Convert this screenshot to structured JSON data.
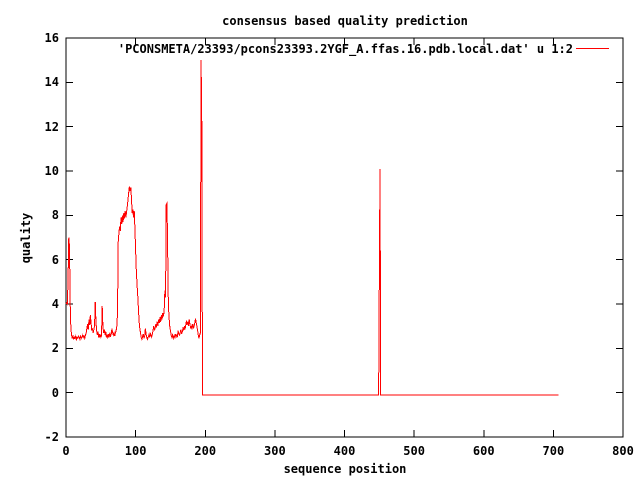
{
  "page": {
    "background": "#ffffff",
    "axis_color": "#000000",
    "text_color": "#000000"
  },
  "chart_data": {
    "type": "line",
    "title": "consensus based quality prediction",
    "xlabel": "sequence position",
    "ylabel": "quality",
    "xlim": [
      0,
      800
    ],
    "ylim": [
      -2,
      16
    ],
    "x_ticks": [
      0,
      100,
      200,
      300,
      400,
      500,
      600,
      700,
      800
    ],
    "y_ticks": [
      -2,
      0,
      2,
      4,
      6,
      8,
      10,
      12,
      14,
      16
    ],
    "grid": false,
    "legend_position": "top-right-inside",
    "series": [
      {
        "name": "'PCONSMETA/23393/pcons23393.2YGF_A.ffas.16.pdb.local.dat' u 1:2",
        "color": "#ff0000",
        "points": [
          [
            0,
            4.0
          ],
          [
            1,
            4.05
          ],
          [
            2,
            4.0
          ],
          [
            3,
            5.2
          ],
          [
            4,
            7.0
          ],
          [
            5,
            6.6
          ],
          [
            6,
            4.0
          ],
          [
            7,
            2.9
          ],
          [
            8,
            2.6
          ],
          [
            9,
            2.45
          ],
          [
            10,
            2.6
          ],
          [
            11,
            2.4
          ],
          [
            12,
            2.5
          ],
          [
            13,
            2.45
          ],
          [
            14,
            2.55
          ],
          [
            15,
            2.4
          ],
          [
            16,
            2.5
          ],
          [
            17,
            2.45
          ],
          [
            18,
            2.55
          ],
          [
            19,
            2.5
          ],
          [
            20,
            2.4
          ],
          [
            21,
            2.55
          ],
          [
            22,
            2.45
          ],
          [
            23,
            2.5
          ],
          [
            24,
            2.6
          ],
          [
            25,
            2.5
          ],
          [
            26,
            2.55
          ],
          [
            27,
            2.45
          ],
          [
            28,
            2.6
          ],
          [
            29,
            2.7
          ],
          [
            30,
            2.9
          ],
          [
            31,
            3.1
          ],
          [
            32,
            2.85
          ],
          [
            33,
            3.3
          ],
          [
            34,
            3.05
          ],
          [
            35,
            3.5
          ],
          [
            36,
            3.15
          ],
          [
            37,
            2.8
          ],
          [
            38,
            2.9
          ],
          [
            39,
            2.7
          ],
          [
            40,
            2.85
          ],
          [
            41,
            3.0
          ],
          [
            42,
            4.1
          ],
          [
            43,
            3.2
          ],
          [
            44,
            2.8
          ],
          [
            45,
            2.6
          ],
          [
            46,
            2.75
          ],
          [
            47,
            2.5
          ],
          [
            48,
            2.65
          ],
          [
            49,
            2.5
          ],
          [
            50,
            2.6
          ],
          [
            51,
            2.55
          ],
          [
            52,
            3.9
          ],
          [
            53,
            3.0
          ],
          [
            54,
            2.7
          ],
          [
            55,
            2.85
          ],
          [
            56,
            2.6
          ],
          [
            57,
            2.75
          ],
          [
            58,
            2.5
          ],
          [
            59,
            2.6
          ],
          [
            60,
            2.5
          ],
          [
            61,
            2.65
          ],
          [
            62,
            2.5
          ],
          [
            63,
            2.7
          ],
          [
            64,
            2.55
          ],
          [
            65,
            2.65
          ],
          [
            66,
            2.9
          ],
          [
            67,
            2.7
          ],
          [
            68,
            2.6
          ],
          [
            69,
            2.7
          ],
          [
            70,
            2.55
          ],
          [
            71,
            2.7
          ],
          [
            72,
            2.8
          ],
          [
            73,
            3.0
          ],
          [
            74,
            3.6
          ],
          [
            75,
            6.8
          ],
          [
            76,
            7.2
          ],
          [
            77,
            7.5
          ],
          [
            78,
            7.3
          ],
          [
            79,
            7.9
          ],
          [
            80,
            7.6
          ],
          [
            81,
            8.0
          ],
          [
            82,
            7.7
          ],
          [
            83,
            8.1
          ],
          [
            84,
            7.85
          ],
          [
            85,
            8.2
          ],
          [
            86,
            7.9
          ],
          [
            87,
            8.15
          ],
          [
            88,
            8.4
          ],
          [
            89,
            8.7
          ],
          [
            90,
            9.0
          ],
          [
            91,
            9.3
          ],
          [
            92,
            9.1
          ],
          [
            93,
            9.25
          ],
          [
            94,
            8.8
          ],
          [
            95,
            8.1
          ],
          [
            96,
            8.25
          ],
          [
            97,
            7.9
          ],
          [
            98,
            8.2
          ],
          [
            99,
            7.4
          ],
          [
            100,
            6.4
          ],
          [
            101,
            5.5
          ],
          [
            102,
            4.9
          ],
          [
            103,
            4.4
          ],
          [
            104,
            3.8
          ],
          [
            105,
            3.2
          ],
          [
            106,
            2.9
          ],
          [
            107,
            2.7
          ],
          [
            108,
            2.5
          ],
          [
            109,
            2.4
          ],
          [
            110,
            2.55
          ],
          [
            111,
            2.65
          ],
          [
            112,
            2.45
          ],
          [
            113,
            2.55
          ],
          [
            114,
            2.9
          ],
          [
            115,
            2.65
          ],
          [
            116,
            2.5
          ],
          [
            117,
            2.4
          ],
          [
            118,
            2.5
          ],
          [
            119,
            2.6
          ],
          [
            120,
            2.5
          ],
          [
            121,
            2.7
          ],
          [
            122,
            2.55
          ],
          [
            123,
            2.5
          ],
          [
            124,
            2.65
          ],
          [
            125,
            2.8
          ],
          [
            126,
            3.0
          ],
          [
            127,
            2.8
          ],
          [
            128,
            2.9
          ],
          [
            129,
            3.1
          ],
          [
            130,
            2.95
          ],
          [
            131,
            3.2
          ],
          [
            132,
            3.0
          ],
          [
            133,
            3.3
          ],
          [
            134,
            3.15
          ],
          [
            135,
            3.4
          ],
          [
            136,
            3.2
          ],
          [
            137,
            3.5
          ],
          [
            138,
            3.3
          ],
          [
            139,
            3.6
          ],
          [
            140,
            3.45
          ],
          [
            141,
            3.7
          ],
          [
            142,
            4.6
          ],
          [
            143,
            4.3
          ],
          [
            144,
            8.5
          ],
          [
            145,
            8.55
          ],
          [
            146,
            6.5
          ],
          [
            147,
            4.0
          ],
          [
            148,
            3.4
          ],
          [
            149,
            3.0
          ],
          [
            150,
            2.8
          ],
          [
            151,
            2.6
          ],
          [
            152,
            2.5
          ],
          [
            153,
            2.6
          ],
          [
            154,
            2.45
          ],
          [
            155,
            2.55
          ],
          [
            156,
            2.5
          ],
          [
            157,
            2.65
          ],
          [
            158,
            2.5
          ],
          [
            159,
            2.6
          ],
          [
            160,
            2.55
          ],
          [
            161,
            2.8
          ],
          [
            162,
            2.65
          ],
          [
            163,
            2.6
          ],
          [
            164,
            2.7
          ],
          [
            165,
            2.85
          ],
          [
            166,
            2.65
          ],
          [
            167,
            2.75
          ],
          [
            168,
            2.9
          ],
          [
            169,
            2.8
          ],
          [
            170,
            3.0
          ],
          [
            171,
            2.85
          ],
          [
            172,
            3.05
          ],
          [
            173,
            3.25
          ],
          [
            174,
            3.05
          ],
          [
            175,
            3.2
          ],
          [
            176,
            3.0
          ],
          [
            177,
            3.3
          ],
          [
            178,
            3.1
          ],
          [
            179,
            2.9
          ],
          [
            180,
            3.0
          ],
          [
            181,
            2.85
          ],
          [
            182,
            3.1
          ],
          [
            183,
            2.9
          ],
          [
            184,
            3.0
          ],
          [
            185,
            3.15
          ],
          [
            186,
            3.35
          ],
          [
            187,
            3.15
          ],
          [
            188,
            3.0
          ],
          [
            189,
            2.8
          ],
          [
            190,
            2.6
          ],
          [
            191,
            2.45
          ],
          [
            192,
            2.6
          ],
          [
            193,
            2.7
          ],
          [
            194,
            15.0
          ],
          [
            195,
            12.2
          ],
          [
            196,
            -0.1
          ],
          [
            449,
            -0.1
          ],
          [
            450,
            5.0
          ],
          [
            451,
            10.1
          ],
          [
            452,
            -0.1
          ],
          [
            707,
            -0.1
          ]
        ]
      }
    ]
  }
}
